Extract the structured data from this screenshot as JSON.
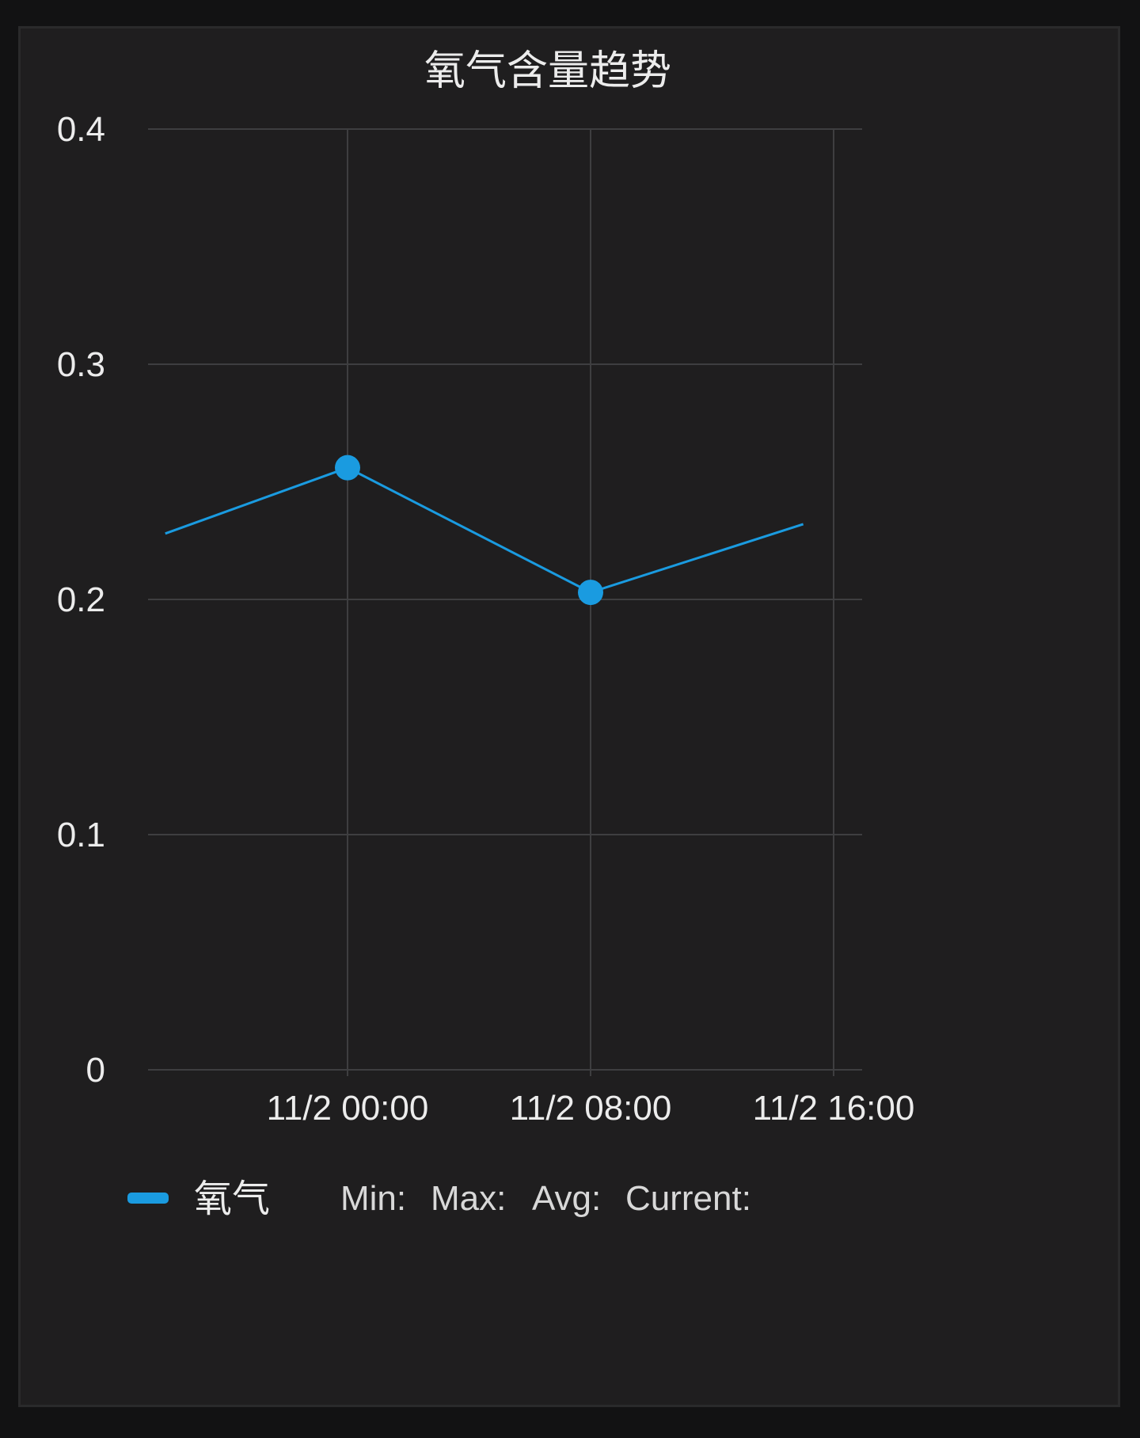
{
  "chart_data": {
    "type": "line",
    "title": "氧气含量趋势",
    "x": [
      "11/1 18:00",
      "11/2 00:00",
      "11/2 08:00",
      "11/2 15:00"
    ],
    "x_ticks": [
      "11/2 00:00",
      "11/2 08:00",
      "11/2 16:00"
    ],
    "y_ticks": [
      "0",
      "0.1",
      "0.2",
      "0.3",
      "0.4"
    ],
    "ylim": [
      0,
      0.4
    ],
    "grid": true,
    "series": [
      {
        "name": "氧气",
        "color": "#1a9be0",
        "values": [
          0.228,
          0.256,
          0.203,
          0.232
        ],
        "markers": [
          false,
          true,
          true,
          false
        ]
      }
    ],
    "legend": {
      "placement": "bottom-left",
      "stats": [
        "Min:",
        "Max:",
        "Avg:",
        "Current:"
      ]
    }
  }
}
